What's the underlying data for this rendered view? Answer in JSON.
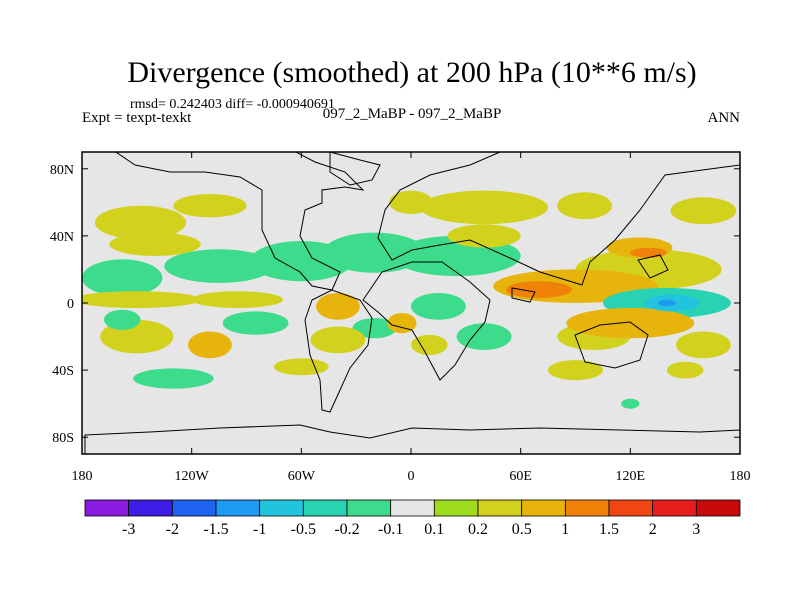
{
  "chart_data": {
    "type": "heatmap",
    "title": "Divergence (smoothed) at 200 hPa (10**6 m/s)",
    "stats": "rmsd= 0.242403  diff= -0.000940691",
    "subtitle_left": "Expt = texpt-texkt",
    "subtitle_center": "097_2_MaBP - 097_2_MaBP",
    "subtitle_right": "ANN",
    "projection": "cylindrical-equidistant",
    "x_range_lon": [
      -180,
      180
    ],
    "y_range_lat": [
      -90,
      90
    ],
    "x_ticks": [
      {
        "lon": -180,
        "label": "180"
      },
      {
        "lon": -120,
        "label": "120W"
      },
      {
        "lon": -60,
        "label": "60W"
      },
      {
        "lon": 0,
        "label": "0"
      },
      {
        "lon": 60,
        "label": "60E"
      },
      {
        "lon": 120,
        "label": "120E"
      },
      {
        "lon": 180,
        "label": "180"
      }
    ],
    "y_ticks": [
      {
        "lat": 80,
        "label": "80N"
      },
      {
        "lat": 40,
        "label": "40N"
      },
      {
        "lat": 0,
        "label": "0"
      },
      {
        "lat": -40,
        "label": "40S"
      },
      {
        "lat": -80,
        "label": "80S"
      }
    ],
    "colorbar": {
      "levels": [
        "-3",
        "-2",
        "-1.5",
        "-1",
        "-0.5",
        "-0.2",
        "-0.1",
        "0.1",
        "0.2",
        "0.5",
        "1",
        "1.5",
        "2",
        "3"
      ],
      "colors": [
        "#8a1be0",
        "#3c1ee6",
        "#1e64f0",
        "#1e9bf0",
        "#22c3dc",
        "#2ad2b4",
        "#3cdc8c",
        "#e6e6e6",
        "#a0dc1e",
        "#d2d21e",
        "#e6b40a",
        "#f0820a",
        "#f04614",
        "#e61e1e",
        "#c80a0a"
      ]
    },
    "background_color": "#e6e6e6",
    "anomalies": [
      {
        "lon": -158,
        "lat": 15,
        "rlon": 22,
        "rlat": 11,
        "value": -0.2
      },
      {
        "lon": -105,
        "lat": 22,
        "rlon": 30,
        "rlat": 10,
        "value": -0.2
      },
      {
        "lon": -150,
        "lat": 2,
        "rlon": 35,
        "rlat": 5,
        "value": 0.2
      },
      {
        "lon": -95,
        "lat": 2,
        "rlon": 25,
        "rlat": 5,
        "value": 0.2
      },
      {
        "lon": -140,
        "lat": 35,
        "rlon": 25,
        "rlat": 7,
        "value": 0.2
      },
      {
        "lon": -150,
        "lat": -20,
        "rlon": 20,
        "rlat": 10,
        "value": 0.2
      },
      {
        "lon": -110,
        "lat": -25,
        "rlon": 12,
        "rlat": 8,
        "value": 0.5
      },
      {
        "lon": -158,
        "lat": -10,
        "rlon": 10,
        "rlat": 6,
        "value": -0.2
      },
      {
        "lon": -85,
        "lat": -12,
        "rlon": 18,
        "rlat": 7,
        "value": -0.2
      },
      {
        "lon": -60,
        "lat": 25,
        "rlon": 28,
        "rlat": 12,
        "value": -0.2
      },
      {
        "lon": -20,
        "lat": 30,
        "rlon": 28,
        "rlat": 12,
        "value": -0.2
      },
      {
        "lon": 25,
        "lat": 28,
        "rlon": 35,
        "rlat": 12,
        "value": -0.2
      },
      {
        "lon": -40,
        "lat": -2,
        "rlon": 12,
        "rlat": 8,
        "value": 0.5
      },
      {
        "lon": -5,
        "lat": -12,
        "rlon": 8,
        "rlat": 6,
        "value": 0.5
      },
      {
        "lon": -20,
        "lat": -15,
        "rlon": 12,
        "rlat": 6,
        "value": -0.2
      },
      {
        "lon": 15,
        "lat": -2,
        "rlon": 15,
        "rlat": 8,
        "value": -0.2
      },
      {
        "lon": 40,
        "lat": -20,
        "rlon": 15,
        "rlat": 8,
        "value": -0.2
      },
      {
        "lon": -40,
        "lat": -22,
        "rlon": 15,
        "rlat": 8,
        "value": 0.2
      },
      {
        "lon": 10,
        "lat": -25,
        "rlon": 10,
        "rlat": 6,
        "value": 0.2
      },
      {
        "lon": 90,
        "lat": 10,
        "rlon": 45,
        "rlat": 10,
        "value": 0.5
      },
      {
        "lon": 70,
        "lat": 8,
        "rlon": 18,
        "rlat": 5,
        "value": 1
      },
      {
        "lon": 130,
        "lat": 20,
        "rlon": 40,
        "rlat": 12,
        "value": 0.2
      },
      {
        "lon": 125,
        "lat": 33,
        "rlon": 18,
        "rlat": 6,
        "value": 0.5
      },
      {
        "lon": 130,
        "lat": 30,
        "rlon": 10,
        "rlat": 3,
        "value": 1
      },
      {
        "lon": 140,
        "lat": 0,
        "rlon": 35,
        "rlat": 9,
        "value": -0.5
      },
      {
        "lon": 143,
        "lat": 0,
        "rlon": 15,
        "rlat": 5,
        "value": -1
      },
      {
        "lon": 140,
        "lat": 0,
        "rlon": 5,
        "rlat": 2,
        "value": -1.5
      },
      {
        "lon": 120,
        "lat": -12,
        "rlon": 35,
        "rlat": 9,
        "value": 0.5
      },
      {
        "lon": 100,
        "lat": -20,
        "rlon": 20,
        "rlat": 8,
        "value": 0.2
      },
      {
        "lon": 160,
        "lat": -25,
        "rlon": 15,
        "rlat": 8,
        "value": 0.2
      },
      {
        "lon": 40,
        "lat": 57,
        "rlon": 35,
        "rlat": 10,
        "value": 0.2
      },
      {
        "lon": -148,
        "lat": 48,
        "rlon": 25,
        "rlat": 10,
        "value": 0.2
      },
      {
        "lon": -110,
        "lat": 58,
        "rlon": 20,
        "rlat": 7,
        "value": 0.2
      },
      {
        "lon": 0,
        "lat": 60,
        "rlon": 12,
        "rlat": 7,
        "value": 0.2
      },
      {
        "lon": 40,
        "lat": 40,
        "rlon": 20,
        "rlat": 7,
        "value": 0.2
      },
      {
        "lon": 95,
        "lat": 58,
        "rlon": 15,
        "rlat": 8,
        "value": 0.2
      },
      {
        "lon": 160,
        "lat": 55,
        "rlon": 18,
        "rlat": 8,
        "value": 0.2
      },
      {
        "lon": -130,
        "lat": -45,
        "rlon": 22,
        "rlat": 6,
        "value": -0.2
      },
      {
        "lon": -60,
        "lat": -38,
        "rlon": 15,
        "rlat": 5,
        "value": 0.2
      },
      {
        "lon": 90,
        "lat": -40,
        "rlon": 15,
        "rlat": 6,
        "value": 0.2
      },
      {
        "lon": 150,
        "lat": -40,
        "rlon": 10,
        "rlat": 5,
        "value": 0.2
      },
      {
        "lon": 120,
        "lat": -60,
        "rlon": 5,
        "rlat": 3,
        "value": -0.2
      }
    ]
  }
}
